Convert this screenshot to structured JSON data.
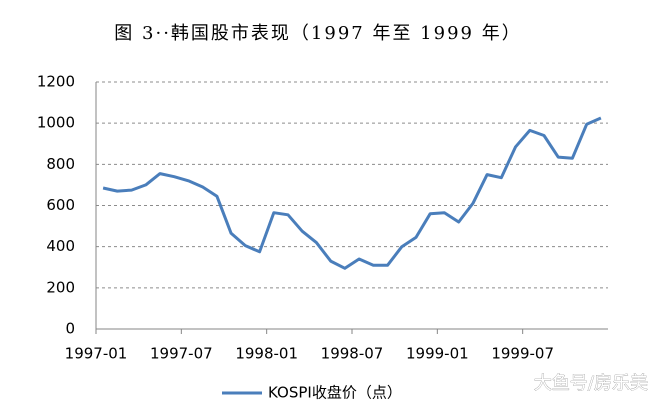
{
  "chart_data": {
    "type": "line",
    "title": "图 3··韩国股市表现（1997 年至 1999 年）",
    "annotation": "大鱼号/房乐美",
    "categories": [
      "1997-01",
      null,
      null,
      null,
      null,
      null,
      "1997-07",
      null,
      null,
      null,
      null,
      null,
      "1998-01",
      null,
      null,
      null,
      null,
      null,
      "1998-07",
      null,
      null,
      null,
      null,
      null,
      "1999-01",
      null,
      null,
      null,
      null,
      null,
      "1999-07",
      null,
      null,
      null,
      null,
      null
    ],
    "series": [
      {
        "name": "KOSPI收盘价（点）",
        "color": "#4a7ebb",
        "values": [
          685,
          670,
          675,
          700,
          755,
          740,
          720,
          690,
          645,
          465,
          405,
          375,
          565,
          555,
          475,
          420,
          330,
          295,
          340,
          310,
          310,
          400,
          445,
          560,
          565,
          520,
          610,
          750,
          735,
          885,
          965,
          940,
          835,
          830,
          995,
          1025
        ]
      }
    ],
    "ylim": [
      0,
      1200
    ],
    "yticks": [
      0,
      200,
      400,
      600,
      800,
      1000,
      1200
    ],
    "grid": true,
    "legend": "bottom"
  }
}
